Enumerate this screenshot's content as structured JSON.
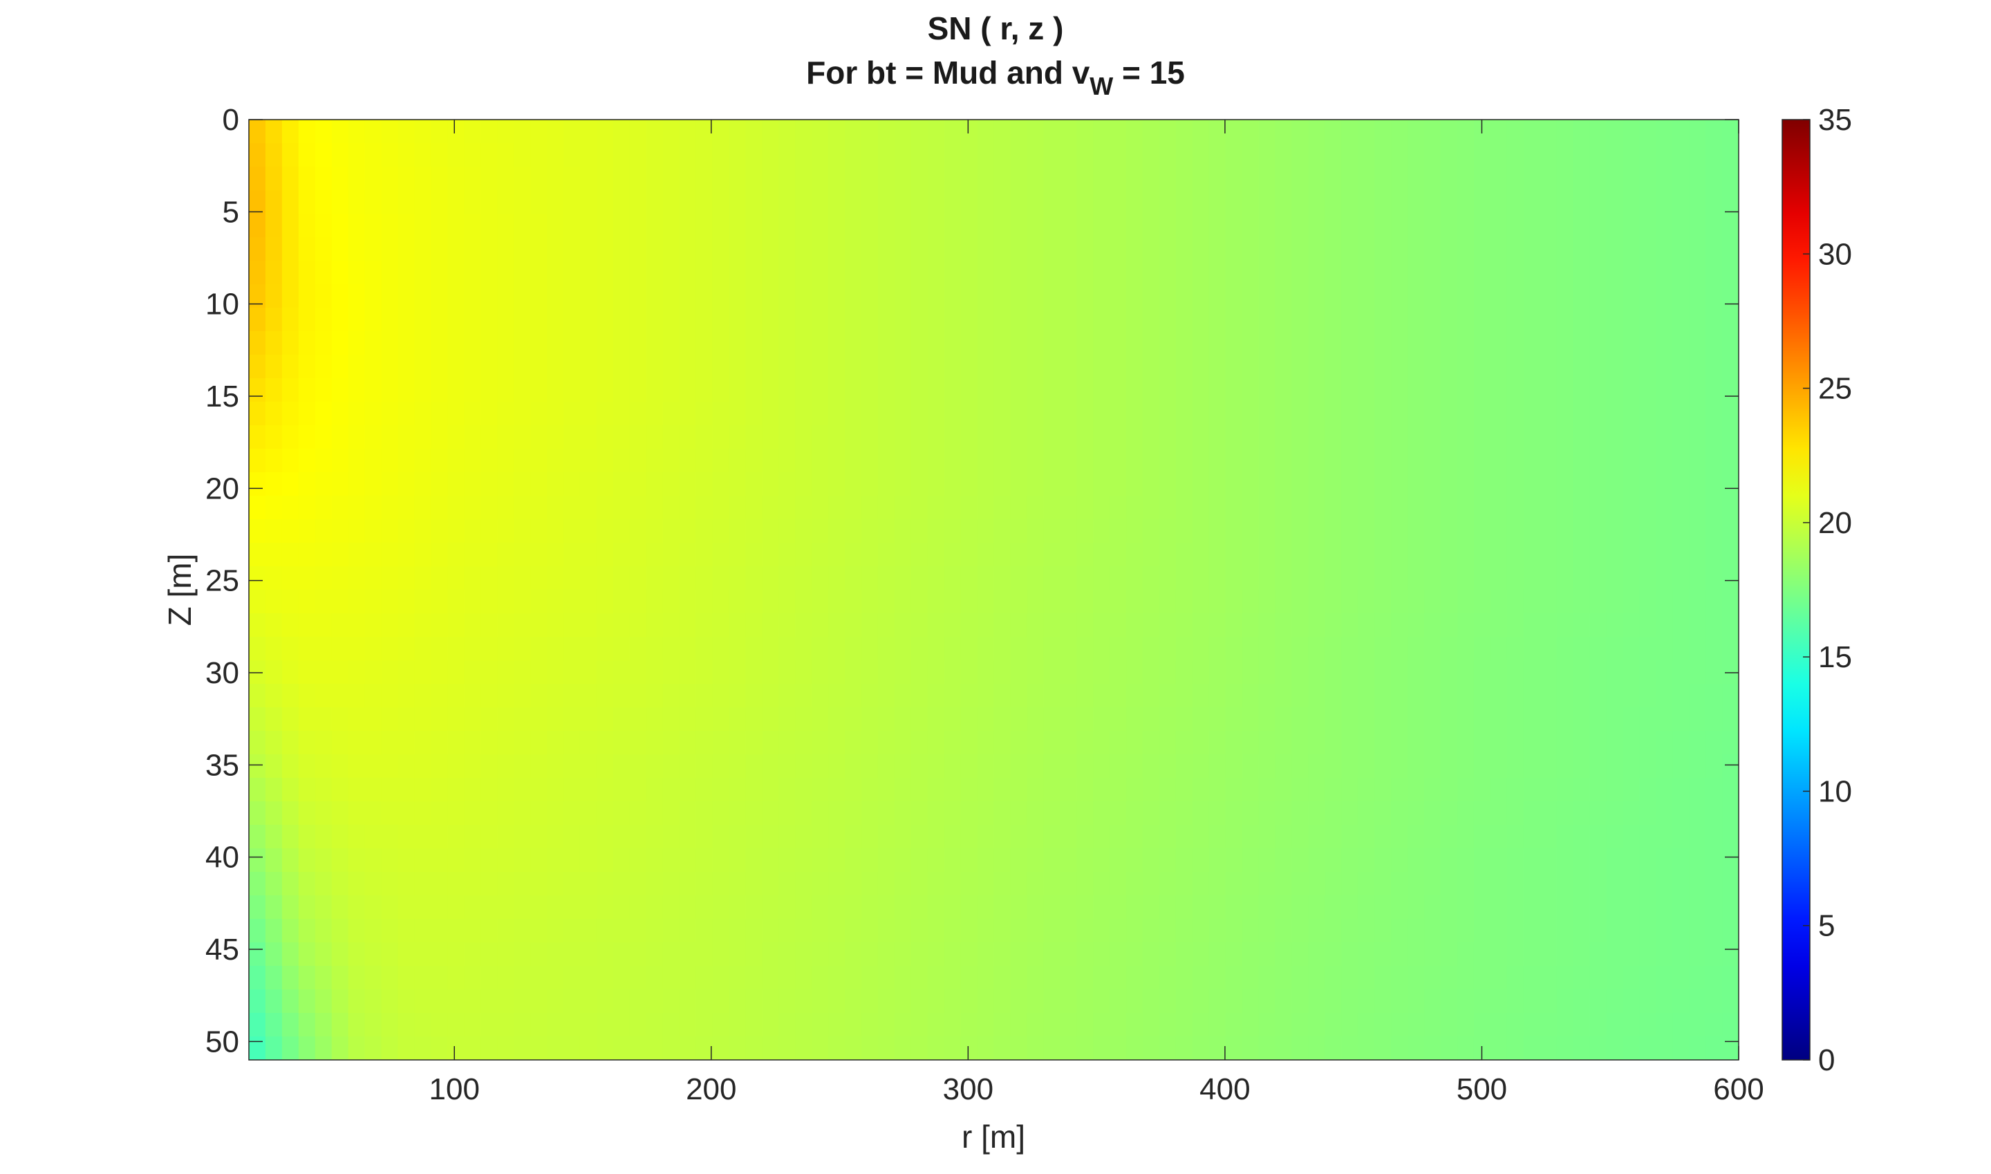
{
  "chart_data": {
    "type": "heatmap",
    "title": "SN ( r, z )",
    "subtitle": {
      "prefix": "For bt = Mud and v",
      "subscript": "W",
      "suffix": " = 15"
    },
    "xlabel": "r [m]",
    "ylabel": "Z [m]",
    "xlim": [
      20,
      600
    ],
    "ylim": [
      0,
      51
    ],
    "y_reversed": true,
    "xticks": [
      100,
      200,
      300,
      400,
      500,
      600
    ],
    "yticks": [
      0,
      5,
      10,
      15,
      20,
      25,
      30,
      35,
      40,
      45,
      50
    ],
    "colormap": "jet",
    "clim": [
      0,
      35
    ],
    "colorbar_ticks": [
      0,
      5,
      10,
      15,
      20,
      25,
      30,
      35
    ],
    "field_samples": {
      "r": [
        20,
        40,
        60,
        80,
        100,
        150,
        200,
        250,
        300,
        350,
        400,
        450,
        500,
        550,
        600
      ],
      "z": [
        0,
        5,
        10,
        15,
        20,
        25,
        30,
        35,
        40,
        45,
        51
      ],
      "values": [
        [
          24.0,
          22.0,
          21.6,
          21.4,
          21.2,
          20.9,
          20.5,
          20.0,
          19.6,
          19.2,
          18.7,
          18.2,
          17.8,
          17.5,
          17.2
        ],
        [
          24.5,
          22.2,
          21.7,
          21.5,
          21.3,
          20.9,
          20.5,
          20.0,
          19.6,
          19.2,
          18.7,
          18.2,
          17.8,
          17.5,
          17.2
        ],
        [
          24.0,
          22.3,
          21.8,
          21.5,
          21.3,
          20.9,
          20.5,
          20.0,
          19.6,
          19.2,
          18.7,
          18.2,
          17.8,
          17.5,
          17.2
        ],
        [
          23.0,
          22.1,
          21.7,
          21.5,
          21.3,
          20.9,
          20.5,
          20.0,
          19.6,
          19.2,
          18.7,
          18.2,
          17.8,
          17.5,
          17.2
        ],
        [
          22.0,
          21.8,
          21.6,
          21.4,
          21.2,
          20.8,
          20.4,
          20.0,
          19.6,
          19.2,
          18.7,
          18.2,
          17.8,
          17.5,
          17.2
        ],
        [
          21.3,
          21.4,
          21.3,
          21.2,
          21.0,
          20.7,
          20.3,
          19.9,
          19.5,
          19.1,
          18.7,
          18.2,
          17.8,
          17.5,
          17.2
        ],
        [
          20.5,
          21.0,
          21.0,
          20.9,
          20.8,
          20.5,
          20.2,
          19.8,
          19.4,
          19.0,
          18.6,
          18.1,
          17.7,
          17.4,
          17.2
        ],
        [
          19.5,
          20.5,
          20.7,
          20.7,
          20.6,
          20.3,
          20.0,
          19.7,
          19.3,
          18.9,
          18.5,
          18.1,
          17.7,
          17.4,
          17.1
        ],
        [
          18.0,
          19.8,
          20.3,
          20.4,
          20.4,
          20.2,
          19.9,
          19.6,
          19.2,
          18.8,
          18.4,
          18.0,
          17.6,
          17.3,
          17.1
        ],
        [
          16.5,
          19.0,
          19.9,
          20.2,
          20.2,
          20.0,
          19.8,
          19.5,
          19.1,
          18.7,
          18.3,
          17.9,
          17.6,
          17.3,
          17.1
        ],
        [
          15.0,
          17.5,
          19.4,
          19.9,
          20.0,
          19.9,
          19.7,
          19.4,
          19.0,
          18.6,
          18.2,
          17.8,
          17.5,
          17.2,
          17.0
        ]
      ]
    }
  }
}
